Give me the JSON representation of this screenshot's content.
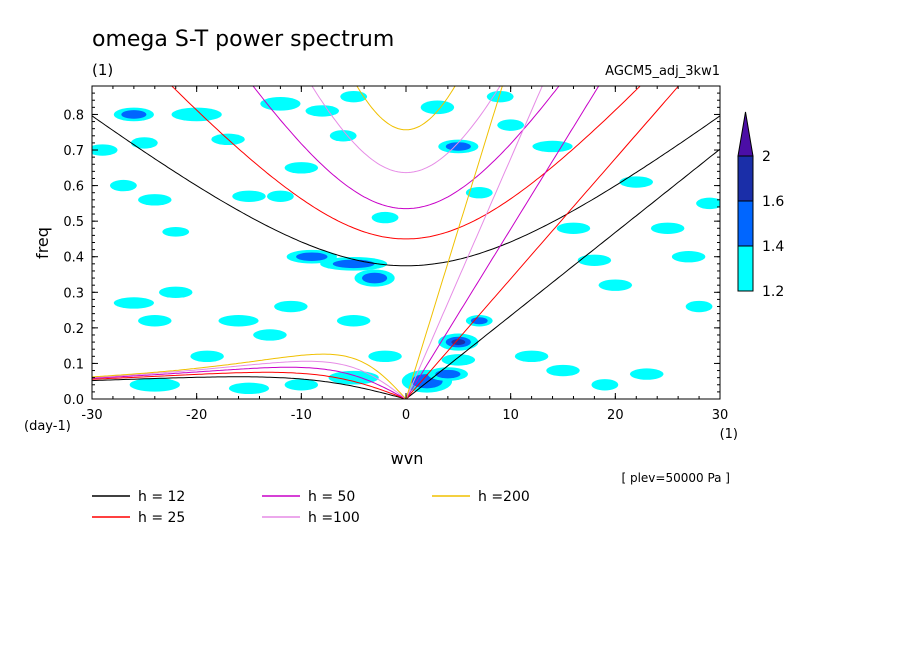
{
  "chart_data": {
    "type": "heatmap",
    "title": "omega S-T power spectrum",
    "subtitle_left": "(1)",
    "subtitle_right": "AGCM5_adj_3kw1",
    "xlabel": "wvn",
    "ylabel": "freq",
    "x_unit_label": "(1)",
    "y_unit_label": "(day-1)",
    "annotation": "[ plev=50000 Pa ]",
    "xlim": [
      -30,
      30
    ],
    "ylim": [
      0,
      0.88
    ],
    "xticks": [
      "-30",
      "-20",
      "-10",
      "0",
      "10",
      "20",
      "30"
    ],
    "yticks": [
      "0.0",
      "0.1",
      "0.2",
      "0.3",
      "0.4",
      "0.5",
      "0.6",
      "0.7",
      "0.8"
    ],
    "colorbar": {
      "levels": [
        "1.2",
        "1.4",
        "1.6",
        "2"
      ],
      "colors": [
        "#00ffff",
        "#0066ff",
        "#1a2ea8",
        "#4b0ea6"
      ]
    },
    "dispersion_curves": [
      {
        "label": "h = 12",
        "h": 12,
        "color": "#000000"
      },
      {
        "label": "h = 25",
        "h": 25,
        "color": "#ff0000"
      },
      {
        "label": "h = 50",
        "h": 50,
        "color": "#c800c8"
      },
      {
        "label": "h =100",
        "h": 100,
        "color": "#e68ce6"
      },
      {
        "label": "h =200",
        "h": 200,
        "color": "#f0c000"
      }
    ],
    "contour_blobs": [
      [
        -29,
        0.7,
        0.9,
        0.01,
        0
      ],
      [
        -26,
        0.8,
        1.2,
        0.012,
        1
      ],
      [
        -25,
        0.72,
        0.8,
        0.01,
        0
      ],
      [
        -24,
        0.56,
        1.0,
        0.01,
        0
      ],
      [
        -22,
        0.47,
        0.8,
        0.008,
        0
      ],
      [
        -20,
        0.8,
        1.5,
        0.012,
        0
      ],
      [
        -17,
        0.73,
        1.0,
        0.01,
        0
      ],
      [
        -15,
        0.57,
        1.0,
        0.01,
        0
      ],
      [
        -12,
        0.83,
        1.2,
        0.012,
        0
      ],
      [
        -8,
        0.81,
        1.0,
        0.01,
        0
      ],
      [
        -6,
        0.74,
        0.8,
        0.01,
        0
      ],
      [
        -10,
        0.65,
        1.0,
        0.01,
        0
      ],
      [
        -12,
        0.57,
        0.8,
        0.01,
        0
      ],
      [
        -9,
        0.4,
        1.5,
        0.012,
        1
      ],
      [
        -5,
        0.38,
        2.0,
        0.012,
        1
      ],
      [
        -3,
        0.34,
        1.2,
        0.015,
        1
      ],
      [
        -2,
        0.51,
        0.8,
        0.01,
        0
      ],
      [
        3,
        0.82,
        1.0,
        0.012,
        0
      ],
      [
        5,
        0.71,
        1.2,
        0.012,
        1
      ],
      [
        7,
        0.58,
        0.8,
        0.01,
        0
      ],
      [
        10,
        0.77,
        0.8,
        0.01,
        0
      ],
      [
        14,
        0.71,
        1.2,
        0.01,
        0
      ],
      [
        16,
        0.48,
        1.0,
        0.01,
        0
      ],
      [
        18,
        0.39,
        1.0,
        0.01,
        0
      ],
      [
        20,
        0.32,
        1.0,
        0.01,
        0
      ],
      [
        22,
        0.61,
        1.0,
        0.01,
        0
      ],
      [
        25,
        0.48,
        1.0,
        0.01,
        0
      ],
      [
        27,
        0.4,
        1.0,
        0.01,
        0
      ],
      [
        28,
        0.26,
        0.8,
        0.01,
        0
      ],
      [
        29,
        0.55,
        0.8,
        0.01,
        0
      ],
      [
        -26,
        0.27,
        1.2,
        0.01,
        0
      ],
      [
        -22,
        0.3,
        1.0,
        0.01,
        0
      ],
      [
        -24,
        0.22,
        1.0,
        0.01,
        0
      ],
      [
        -16,
        0.22,
        1.2,
        0.01,
        0
      ],
      [
        -11,
        0.26,
        1.0,
        0.01,
        0
      ],
      [
        -13,
        0.18,
        1.0,
        0.01,
        0
      ],
      [
        -5,
        0.22,
        1.0,
        0.01,
        0
      ],
      [
        -24,
        0.04,
        1.5,
        0.012,
        0
      ],
      [
        -15,
        0.03,
        1.2,
        0.01,
        0
      ],
      [
        -10,
        0.04,
        1.0,
        0.01,
        0
      ],
      [
        -5,
        0.06,
        1.5,
        0.012,
        0
      ],
      [
        2,
        0.05,
        1.5,
        0.02,
        1
      ],
      [
        4,
        0.07,
        1.2,
        0.012,
        1
      ],
      [
        5,
        0.16,
        1.2,
        0.015,
        2
      ],
      [
        7,
        0.22,
        0.8,
        0.01,
        1
      ],
      [
        5,
        0.11,
        1.0,
        0.01,
        0
      ],
      [
        12,
        0.12,
        1.0,
        0.01,
        0
      ],
      [
        15,
        0.08,
        1.0,
        0.01,
        0
      ],
      [
        19,
        0.04,
        0.8,
        0.01,
        0
      ],
      [
        23,
        0.07,
        1.0,
        0.01,
        0
      ],
      [
        -2,
        0.12,
        1.0,
        0.01,
        0
      ],
      [
        -19,
        0.12,
        1.0,
        0.01,
        0
      ],
      [
        -27,
        0.6,
        0.8,
        0.01,
        0
      ],
      [
        -5,
        0.85,
        0.8,
        0.01,
        0
      ],
      [
        9,
        0.85,
        0.8,
        0.01,
        0
      ]
    ]
  }
}
